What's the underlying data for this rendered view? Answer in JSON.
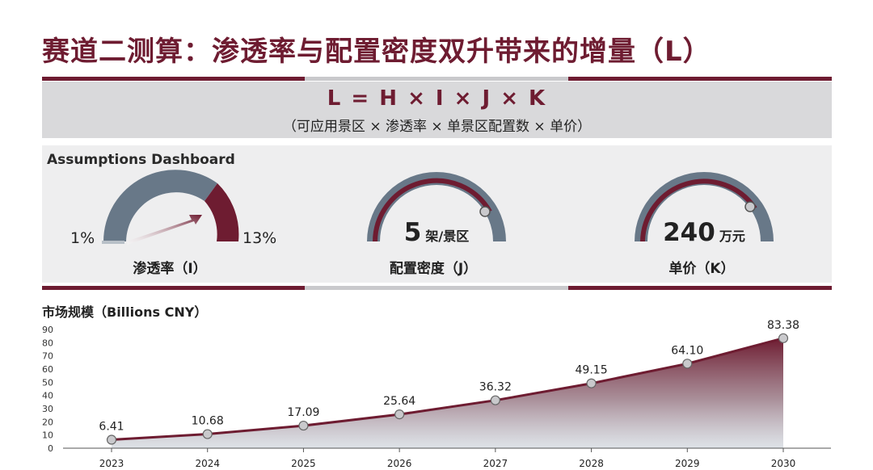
{
  "title": "赛道二测算：渗透率与配置密度双升带来的增量（L）",
  "formula": {
    "main": "L = H × I × J × K",
    "sub": "（可应用景区 × 渗透率 × 单景区配置数 × 单价）"
  },
  "dashboard": {
    "title": "Assumptions Dashboard",
    "gauges": [
      {
        "label": "渗透率（I）",
        "min_label": "1%",
        "max_label": "13%",
        "min": 1,
        "max": 13
      },
      {
        "label": "配置密度（J）",
        "value": "5",
        "unit": "架/景区"
      },
      {
        "label": "单价（K）",
        "value": "240",
        "unit": "万元"
      }
    ]
  },
  "colors": {
    "maroon": "#6e1c31",
    "slate": "#687888",
    "light_gray": "#d9d9db",
    "panel": "#eeeeef"
  },
  "chart_data": {
    "type": "area",
    "title": "市场规模（Billions CNY）",
    "x": [
      "2023",
      "2024",
      "2025",
      "2026",
      "2027",
      "2028",
      "2029",
      "2030"
    ],
    "series": [
      {
        "values": [
          6.41,
          10.68,
          17.09,
          25.64,
          36.32,
          49.15,
          64.1,
          83.38
        ],
        "labels": [
          "6.41",
          "10.68",
          "17.09",
          "25.64",
          "36.32",
          "49.15",
          "64.10",
          "83.38"
        ]
      }
    ],
    "ylim": [
      0,
      90
    ],
    "yticks": [
      0,
      10,
      20,
      30,
      40,
      50,
      60,
      70,
      80,
      90
    ],
    "grid": false,
    "legend": "none"
  }
}
